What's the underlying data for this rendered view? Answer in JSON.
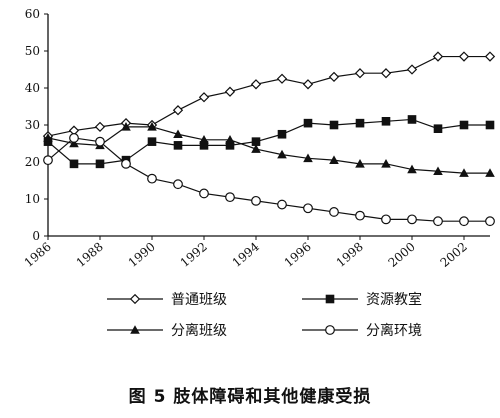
{
  "chart_data": {
    "type": "line",
    "x": [
      1986,
      1987,
      1988,
      1989,
      1990,
      1991,
      1992,
      1993,
      1994,
      1995,
      1996,
      1997,
      1998,
      1999,
      2000,
      2001,
      2002,
      2003
    ],
    "x_ticks": [
      "1986",
      "1988",
      "1990",
      "1992",
      "1994",
      "1996",
      "1998",
      "2000",
      "2002"
    ],
    "ylim": [
      0,
      60
    ],
    "y_ticks": [
      "0",
      "10",
      "20",
      "30",
      "40",
      "50",
      "60"
    ],
    "grid": false,
    "legend_position": "bottom",
    "series": [
      {
        "name": "普通班级",
        "marker": "diamond-open",
        "values": [
          27,
          28.5,
          29.5,
          30.5,
          30,
          34,
          37.5,
          39,
          41,
          42.5,
          41,
          43,
          44,
          44,
          45,
          48.5,
          48.5,
          48.5
        ]
      },
      {
        "name": "资源教室",
        "marker": "square-filled",
        "values": [
          25.5,
          19.5,
          19.5,
          20.5,
          25.5,
          24.5,
          24.5,
          24.5,
          25.5,
          27.5,
          30.5,
          30,
          30.5,
          31,
          31.5,
          29,
          30,
          30
        ]
      },
      {
        "name": "分离班级",
        "marker": "triangle-filled",
        "values": [
          26.5,
          25,
          24.5,
          29.5,
          29.5,
          27.5,
          26,
          26,
          23.5,
          22,
          21,
          20.5,
          19.5,
          19.5,
          18,
          17.5,
          17,
          17
        ]
      },
      {
        "name": "分离环境",
        "marker": "circle-open",
        "values": [
          20.5,
          26.5,
          25.5,
          19.5,
          15.5,
          14,
          11.5,
          10.5,
          9.5,
          8.5,
          7.5,
          6.5,
          5.5,
          4.5,
          4.5,
          4,
          4,
          4
        ]
      }
    ],
    "caption": "图 5    肢体障碍和其他健康受损"
  }
}
